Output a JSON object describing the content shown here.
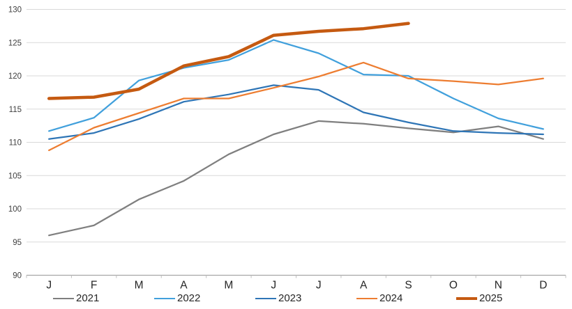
{
  "chart_data": {
    "type": "line",
    "title": "",
    "xlabel": "",
    "ylabel": "",
    "grid": true,
    "legend_position": "bottom",
    "categories": [
      "J",
      "F",
      "M",
      "A",
      "M",
      "J",
      "J",
      "A",
      "S",
      "O",
      "N",
      "D"
    ],
    "y_axis": {
      "min": 90,
      "max": 130,
      "step": 5,
      "tick_labels": [
        "90",
        "95",
        "100",
        "105",
        "110",
        "115",
        "120",
        "125",
        "130"
      ]
    },
    "series": [
      {
        "name": "2021",
        "color": "#7F7F7F",
        "stroke_width": 2.25,
        "values": [
          96.0,
          97.5,
          101.4,
          104.2,
          108.2,
          111.2,
          113.2,
          112.8,
          112.1,
          111.5,
          112.4,
          110.5
        ]
      },
      {
        "name": "2022",
        "color": "#41A0DC",
        "stroke_width": 2.25,
        "values": [
          111.7,
          113.7,
          119.3,
          121.2,
          122.4,
          125.4,
          123.4,
          120.2,
          120.0,
          116.6,
          113.6,
          112.0
        ]
      },
      {
        "name": "2023",
        "color": "#2E75B6",
        "stroke_width": 2.25,
        "values": [
          110.5,
          111.4,
          113.5,
          116.1,
          117.2,
          118.6,
          117.9,
          114.5,
          113.0,
          111.7,
          111.4,
          111.2
        ]
      },
      {
        "name": "2024",
        "color": "#ED7D31",
        "stroke_width": 2.25,
        "values": [
          108.8,
          112.2,
          114.4,
          116.6,
          116.6,
          118.2,
          119.9,
          122.0,
          119.6,
          119.2,
          118.7,
          119.6
        ]
      },
      {
        "name": "2025",
        "color": "#C55A11",
        "stroke_width": 4.5,
        "values": [
          116.6,
          116.8,
          118.0,
          121.5,
          122.9,
          126.1,
          126.7,
          127.1,
          127.9,
          null,
          null,
          null
        ]
      }
    ]
  },
  "colors": {
    "background": "#FFFFFF",
    "gridline": "#D9D9D9",
    "axis_line": "#A6A6A6",
    "tick_mark": "#BFBFBF",
    "y_label": "#404040",
    "x_label": "#262626",
    "legend_text": "#262626"
  }
}
